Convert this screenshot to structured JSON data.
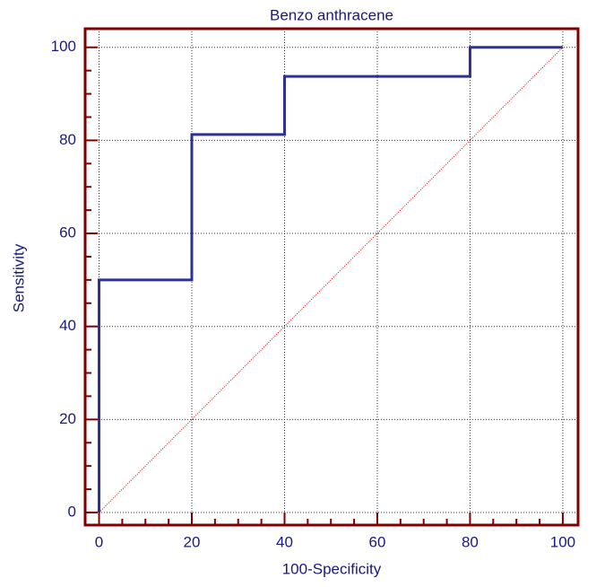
{
  "chart_data": {
    "type": "line",
    "title": "Benzo anthracene",
    "x_label": "100-Specificity",
    "y_label": "Sensitivity",
    "series": [
      {
        "color": "#2e3192",
        "style": "solid",
        "x": [
          0,
          0,
          20,
          20,
          40,
          40,
          80,
          80,
          100
        ],
        "values": [
          0,
          50,
          50,
          81.25,
          81.25,
          93.75,
          93.75,
          100,
          100
        ]
      },
      {
        "color": "#cc0000",
        "style": "dotted",
        "x": [
          0,
          100
        ],
        "values": [
          0,
          100
        ]
      }
    ],
    "xlim": [
      -3,
      103.3
    ],
    "ylim": [
      -2.7,
      104
    ],
    "xticks": [
      0,
      20,
      40,
      60,
      80,
      100
    ],
    "yticks": [
      0,
      20,
      40,
      60,
      80,
      100
    ],
    "xminorticks": [
      5,
      10,
      15,
      25,
      30,
      35,
      45,
      50,
      55,
      65,
      70,
      75,
      85,
      90,
      95
    ],
    "yminorticks": [
      5,
      10,
      15,
      25,
      30,
      35,
      45,
      50,
      55,
      65,
      70,
      75,
      85,
      90,
      95
    ],
    "grid": true
  }
}
